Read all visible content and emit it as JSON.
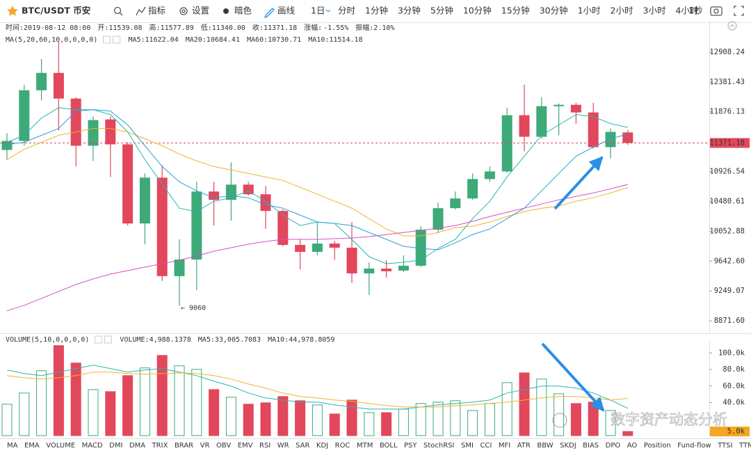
{
  "toolbar": {
    "symbol": "BTC/USDT 币安",
    "buttons": [
      "指标",
      "设置",
      "暗色",
      "画线"
    ],
    "period": "1日",
    "intervals": [
      "分时",
      "1分钟",
      "3分钟",
      "5分钟",
      "10分钟",
      "15分钟",
      "30分钟",
      "1小时",
      "2小时",
      "3小时",
      "4小时"
    ],
    "speed": "1秒"
  },
  "info": {
    "items": [
      "时间:2019-08-12 08:00",
      "开:11539.08",
      "高:11577.89",
      "低:11340.00",
      "收:11371.18"
    ],
    "change_label": "涨幅:",
    "change": "-1.55%",
    "amplitude": "振幅:2.10%"
  },
  "chart_data": [
    {
      "type": "candlestick",
      "indicator": "MA(5,20,60,10,0,0,0,0)",
      "up_color": "#3daa78",
      "down_color": "#e2475b",
      "log_scale": true,
      "open": [
        11261,
        11404,
        12239,
        12539,
        12098,
        11327,
        11751,
        11349,
        10163,
        10834,
        9443,
        9664,
        10626,
        10503,
        10729,
        10585,
        10342,
        9863,
        9768,
        9882,
        9825,
        9479,
        9543,
        9516,
        9581,
        10075,
        10382,
        10524,
        10813,
        10928,
        11820,
        11470,
        11970,
        11993,
        11866,
        11305,
        11539.08
      ],
      "high": [
        11526,
        12334,
        12784,
        13097,
        12121,
        11797,
        11797,
        11382,
        10897,
        11024,
        9940,
        10771,
        10771,
        11067,
        10771,
        10709,
        10362,
        9940,
        10183,
        9920,
        10183,
        9627,
        9655,
        9721,
        10124,
        10463,
        10626,
        10897,
        11003,
        11946,
        12334,
        12121,
        12016,
        12028,
        12028,
        11604,
        11577.89
      ],
      "low": [
        11110,
        11327,
        12063,
        11571,
        11003,
        11088,
        10844,
        10134,
        9872,
        9379,
        9060,
        9261,
        10134,
        10203,
        10564,
        10085,
        9844,
        9534,
        9721,
        9655,
        9351,
        9199,
        9424,
        9497,
        9562,
        10026,
        10362,
        10503,
        10771,
        10907,
        11240,
        11437,
        11493,
        11683,
        11283,
        11131,
        11340
      ],
      "close": [
        11404,
        12239,
        12539,
        12098,
        11327,
        11740,
        11349,
        10163,
        10834,
        9443,
        9664,
        10626,
        10503,
        10729,
        10585,
        10342,
        9863,
        9768,
        9882,
        9825,
        9479,
        9543,
        9507,
        9581,
        10075,
        10382,
        10524,
        10813,
        10928,
        11820,
        11470,
        11970,
        11993,
        11866,
        11305,
        11548,
        11371.18
      ],
      "series": [
        {
          "legend": "MA5:11622.04",
          "color": "#27b5b0",
          "values": [
            11382,
            11493,
            11774,
            11946,
            11912,
            11912,
            11831,
            11548,
            11110,
            10740,
            10382,
            10332,
            10483,
            10534,
            10636,
            10483,
            10282,
            10134,
            10183,
            10163,
            9940,
            9702,
            9608,
            9627,
            9655,
            9815,
            9940,
            10232,
            10483,
            10844,
            11164,
            11493,
            11661,
            11831,
            11797,
            11683,
            11622.04
          ]
        },
        {
          "legend": "MA20:10684.41",
          "color": "#f2b22e",
          "values": [
            11110,
            11272,
            11382,
            11493,
            11548,
            11604,
            11604,
            11548,
            11437,
            11327,
            11196,
            11088,
            11003,
            10950,
            10897,
            10844,
            10792,
            10688,
            10585,
            10483,
            10382,
            10232,
            10085,
            9988,
            9988,
            10036,
            10105,
            10124,
            10183,
            10262,
            10332,
            10382,
            10412,
            10483,
            10534,
            10605,
            10684.41
          ]
        },
        {
          "legend": "MA60:10730.71",
          "color": "#d94cc6",
          "values": [
            8996,
            9066,
            9154,
            9243,
            9333,
            9406,
            9470,
            9516,
            9562,
            9608,
            9655,
            9712,
            9777,
            9825,
            9872,
            9911,
            9940,
            9940,
            9940,
            9949,
            9959,
            9978,
            10007,
            10036,
            10066,
            10095,
            10134,
            10193,
            10262,
            10322,
            10382,
            10442,
            10503,
            10554,
            10605,
            10667,
            10730.71
          ]
        },
        {
          "legend": "MA10:11514.18",
          "color": "#2a9fd8",
          "values": [
            11349,
            11382,
            11493,
            11604,
            11889,
            11912,
            11889,
            11661,
            11327,
            11003,
            10771,
            10636,
            10534,
            10564,
            10534,
            10432,
            10382,
            10282,
            10183,
            10163,
            10134,
            10036,
            9940,
            9844,
            9815,
            9796,
            9891,
            10007,
            10085,
            10232,
            10382,
            10636,
            10897,
            11164,
            11305,
            11437,
            11514.18
          ]
        }
      ],
      "ylim": [
        8727,
        13444
      ],
      "yticks": [
        12908.24,
        12381.43,
        11876.13,
        10926.54,
        10480.61,
        10052.88,
        {
          "value": 9642.6,
          "label": "9642.60"
        },
        9249.07,
        {
          "value": 8871.6,
          "label": "8871.60"
        }
      ],
      "last_label": "11371.18",
      "annotation": "← 9060"
    },
    {
      "type": "bar",
      "indicator": "VOLUME(5,10,0,0,0,0)",
      "legend": "VOLUME:4,988.1378",
      "values": [
        38000,
        51500,
        78500,
        108900,
        87800,
        55700,
        53200,
        72600,
        81900,
        97000,
        84400,
        80200,
        55700,
        46400,
        38000,
        39700,
        47300,
        42200,
        37100,
        26200,
        43000,
        27800,
        27800,
        32100,
        38800,
        40500,
        42200,
        30400,
        38800,
        64100,
        75900,
        68400,
        50600,
        38800,
        40500,
        30400,
        4988.1378
      ],
      "series": [
        {
          "legend": "MA5:33,005.7083",
          "color": "#27b5b0",
          "values": [
            79300,
            75100,
            72600,
            76800,
            81000,
            85200,
            81000,
            76800,
            79300,
            81000,
            76800,
            72600,
            65800,
            59900,
            51500,
            45600,
            43000,
            40500,
            40500,
            37100,
            34600,
            32100,
            32100,
            32100,
            34600,
            37100,
            38800,
            40500,
            43000,
            51500,
            55700,
            59900,
            59900,
            57400,
            51500,
            43000,
            33005.7083
          ]
        },
        {
          "legend": "MA10:44,978.8059",
          "color": "#f2b22e",
          "values": [
            72600,
            70000,
            68400,
            70000,
            72600,
            76800,
            76800,
            75100,
            74300,
            75100,
            75900,
            75100,
            72600,
            68400,
            62400,
            57400,
            51500,
            47300,
            45600,
            43000,
            41400,
            38800,
            36300,
            34600,
            34600,
            34600,
            36300,
            37100,
            38800,
            40500,
            43000,
            45600,
            47300,
            47300,
            45600,
            43000,
            44978.8059
          ]
        }
      ],
      "ylim": [
        0,
        112000
      ],
      "yticks": [
        {
          "value": 100000,
          "label": "100.0k"
        },
        {
          "value": 80000,
          "label": "80.0k"
        },
        {
          "value": 60000,
          "label": "60.0k"
        },
        {
          "value": 40000,
          "label": "40.0k"
        }
      ],
      "last_label": "5.0k"
    }
  ],
  "watermark": "数字资产动态分析",
  "tabs": [
    "MA",
    "EMA",
    "VOLUME",
    "MACD",
    "DMI",
    "DMA",
    "TRIX",
    "BRAR",
    "VR",
    "OBV",
    "EMV",
    "RSI",
    "WR",
    "SAR",
    "KDJ",
    "ROC",
    "MTM",
    "BOLL",
    "PSY",
    "StochRSI",
    "SMI",
    "CCI",
    "MFI",
    "ATR",
    "BBW",
    "SKDJ",
    "BIAS",
    "DPO",
    "AO",
    "Position",
    "Fund-flow",
    "TTSI",
    "TTMU"
  ],
  "active_tab": "VOLUME",
  "disabled_tab": "Position"
}
